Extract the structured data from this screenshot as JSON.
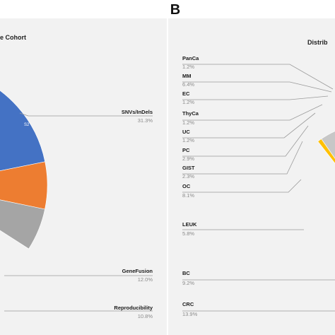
{
  "panel_b_letter": "B",
  "chart_data": [
    {
      "type": "pie",
      "panel": "A",
      "title": "e Cohort",
      "slices": [
        {
          "label": "SNVs/InDels",
          "percent": "31.3%",
          "value": 31.3,
          "color": "#4472c4",
          "inner_label": "S2"
        },
        {
          "label": "GeneFusion",
          "percent": "12.0%",
          "value": 12.0,
          "color": "#ed7d31",
          "inner_label": ""
        },
        {
          "label": "Reproducibility",
          "percent": "10.8%",
          "value": 10.8,
          "color": "#a5a5a5",
          "inner_label": ""
        }
      ]
    },
    {
      "type": "pie",
      "panel": "B",
      "title": "Distrib",
      "slices": [
        {
          "label": "PanCa",
          "percent": "1.2%",
          "value": 1.2,
          "color": "#ffc000"
        },
        {
          "label": "MM",
          "percent": "6.4%",
          "value": 6.4,
          "color": "#c7c7c7"
        },
        {
          "label": "EC",
          "percent": "1.2%",
          "value": 1.2,
          "color": "#ed7d31"
        },
        {
          "label": "ThyCa",
          "percent": "1.2%",
          "value": 1.2,
          "color": "#f4b183"
        },
        {
          "label": "UC",
          "percent": "1.2%",
          "value": 1.2,
          "color": "#8faadc"
        },
        {
          "label": "PC",
          "percent": "2.9%",
          "value": 2.9,
          "color": "#70ad47"
        },
        {
          "label": "GIST",
          "percent": "2.3%",
          "value": 2.3,
          "color": "#9dc3e6"
        },
        {
          "label": "OC",
          "percent": "8.1%",
          "value": 8.1,
          "color": "#5b9bd5"
        },
        {
          "label": "LEUK",
          "percent": "5.8%",
          "value": 5.8,
          "color": "#ffc000"
        },
        {
          "label": "BC",
          "percent": "9.2%",
          "value": 9.2,
          "color": "#a5a5a5"
        },
        {
          "label": "CRC",
          "percent": "13.9%",
          "value": 13.9,
          "color": "#4472c4"
        }
      ]
    }
  ]
}
